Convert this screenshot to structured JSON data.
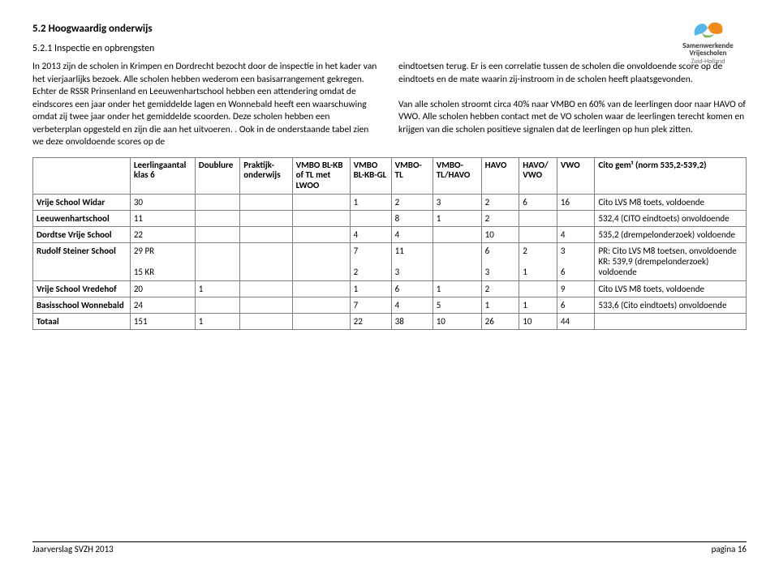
{
  "logo": {
    "name": "Samenwerkende Vrijescholen",
    "region": "Zuid-Holland"
  },
  "heading": "5.2 Hoogwaardig onderwijs",
  "subheading": "5.2.1 Inspectie en opbrengsten",
  "para_left": "In 2013 zijn de scholen in Krimpen en Dordrecht bezocht door de inspectie in het kader van het vierjaarlijks bezoek. Alle scholen hebben wederom een basisarrangement gekregen. Echter de RSSR Prinsenland en Leeuwenhartschool hebben een attendering omdat de eindscores een jaar onder het gemiddelde lagen en Wonnebald heeft een waarschuwing omdat zij twee jaar onder het gemiddelde scoorden. Deze scholen hebben een verbeterplan opgesteld en zijn die aan het uitvoeren. . Ook in de onderstaande tabel zien we deze onvoldoende scores op de",
  "para_right": "eindtoetsen terug. Er is een correlatie tussen de scholen die onvoldoende score op de eindtoets en de mate waarin zij-instroom in de scholen heeft plaatsgevonden.\n\nVan alle scholen stroomt circa 40% naar VMBO en 60% van de leerlingen door naar HAVO of VWO. Alle scholen hebben contact met de VO scholen waar de leerlingen terecht komen en krijgen van die scholen positieve signalen dat de leerlingen op hun plek zitten.",
  "table": {
    "columns": [
      "",
      "Leerlingaantal klas 6",
      "Doublure",
      "Praktijk-onderwijs",
      "VMBO BL-KB of TL met LWOO",
      "VMBO BL-KB-GL",
      "VMBO-TL",
      "VMBO-TL/HAVO",
      "HAVO",
      "HAVO/ VWO",
      "VWO",
      "Cito gem¹ (norm 535,2-539,2)"
    ],
    "rows": [
      {
        "name": "Vrije School Widar",
        "leerling": "30",
        "doublure": "",
        "praktijk": "",
        "v1": "",
        "v2": "1",
        "v3": "2",
        "v4": "3",
        "havo": "2",
        "havovwo": "6",
        "vwo": "16",
        "cito": " Cito LVS M8 toets, voldoende"
      },
      {
        "name": "Leeuwenhartschool",
        "leerling": "11",
        "doublure": "",
        "praktijk": "",
        "v1": "",
        "v2": "",
        "v3": "8",
        "v4": "1",
        "havo": "2",
        "havovwo": "",
        "vwo": "",
        "cito": "532,4 (CITO eindtoets) onvoldoende"
      },
      {
        "name": "Dordtse Vrije School",
        "leerling": "22",
        "doublure": "",
        "praktijk": "",
        "v1": "",
        "v2": "4",
        "v3": "4",
        "v4": "",
        "havo": "10",
        "havovwo": "",
        "vwo": "4",
        "cito": "535,2 (drempelonderzoek) voldoende"
      },
      {
        "name": "Rudolf Steiner School",
        "leerling": "29 PR\n\n15 KR",
        "doublure": "",
        "praktijk": "",
        "v1": "",
        "v2": "7\n\n2",
        "v3": "11\n\n3",
        "v4": "",
        "havo": "6\n\n3",
        "havovwo": "2\n\n1",
        "vwo": "3\n\n6",
        "cito": "PR: Cito LVS M8 toetsen, onvoldoende\nKR: 539,9 (drempelonderzoek) voldoende"
      },
      {
        "name": "Vrije School Vredehof",
        "leerling": "20",
        "doublure": "1",
        "praktijk": "",
        "v1": "",
        "v2": "1",
        "v3": "6",
        "v4": "1",
        "havo": "2",
        "havovwo": "",
        "vwo": "9",
        "cito": " Cito LVS M8 toets, voldoende"
      },
      {
        "name": "Basisschool Wonnebald",
        "leerling": "24",
        "doublure": "",
        "praktijk": "",
        "v1": "",
        "v2": "7",
        "v3": "4",
        "v4": "5",
        "havo": "1",
        "havovwo": "1",
        "vwo": "6",
        "cito": "533,6  (Cito eindtoets) onvoldoende"
      },
      {
        "name": "Totaal",
        "leerling": "151",
        "doublure": "1",
        "praktijk": "",
        "v1": "",
        "v2": "22",
        "v3": "38",
        "v4": "10",
        "havo": "26",
        "havovwo": "10",
        "vwo": "44",
        "cito": ""
      }
    ]
  },
  "footer": {
    "left": "Jaarverslag SVZH 2013",
    "right": "pagina 16"
  }
}
